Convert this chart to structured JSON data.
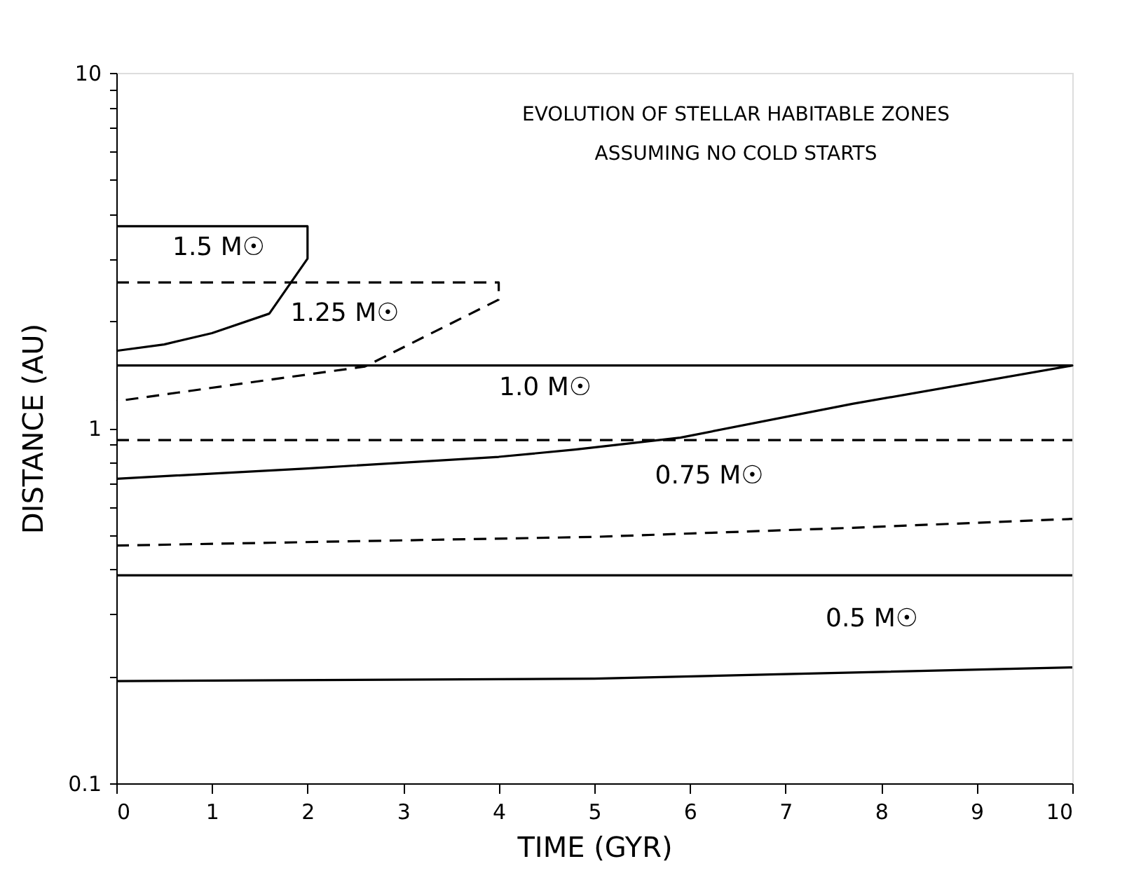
{
  "chart_data": {
    "type": "line",
    "title": "EVOLUTION OF STELLAR HABITABLE ZONES",
    "subtitle": "ASSUMING NO COLD STARTS",
    "xlabel": "TIME (GYR)",
    "ylabel": "DISTANCE (AU)",
    "log": "y",
    "grid": false,
    "marker": "none",
    "xlim": [
      0,
      10
    ],
    "xticks": [
      0,
      1,
      2,
      3,
      4,
      5,
      6,
      7,
      8,
      9,
      10
    ],
    "ylim": [
      0.1,
      10
    ],
    "yticks": [
      0.1,
      {
        "value": 0.2,
        "label": null
      },
      {
        "value": 0.3,
        "label": null
      },
      {
        "value": 0.4,
        "label": null
      },
      {
        "value": 0.5,
        "label": null
      },
      {
        "value": 0.6,
        "label": null
      },
      {
        "value": 0.7,
        "label": null
      },
      {
        "value": 0.8,
        "label": null
      },
      {
        "value": 0.9,
        "label": null
      },
      1,
      {
        "value": 2,
        "label": null
      },
      {
        "value": 3,
        "label": null
      },
      {
        "value": 4,
        "label": null
      },
      {
        "value": 5,
        "label": null
      },
      {
        "value": 6,
        "label": null
      },
      {
        "value": 7,
        "label": null
      },
      {
        "value": 8,
        "label": null
      },
      {
        "value": 9,
        "label": null
      },
      10
    ],
    "series": [
      {
        "color": "#000000",
        "line_style": "solid",
        "x": [
          0,
          2,
          2,
          1.6,
          1.0,
          0.5,
          0
        ],
        "values": [
          3.7,
          3.7,
          3.0,
          2.1,
          1.85,
          1.72,
          1.65
        ]
      },
      {
        "color": "#000000",
        "line_style": "dashed",
        "x": [
          0,
          4,
          4,
          2.6,
          1.1,
          0
        ],
        "values": [
          2.57,
          2.57,
          2.3,
          1.49,
          1.31,
          1.19
        ]
      },
      {
        "color": "#000000",
        "line_style": "solid",
        "x": [
          0,
          10,
          10,
          7.7,
          5.9,
          4.8,
          4,
          2,
          0
        ],
        "values": [
          1.5,
          1.5,
          1.5,
          1.17,
          0.94,
          0.87,
          0.83,
          0.77,
          0.72
        ]
      },
      {
        "color": "#000000",
        "line_style": "dashed",
        "x": [
          0,
          10,
          null,
          0,
          5,
          7.7,
          10
        ],
        "values": [
          0.925,
          0.925,
          null,
          0.467,
          0.494,
          0.524,
          0.555
        ]
      },
      {
        "color": "#000000",
        "line_style": "solid",
        "x": [
          0,
          10,
          null,
          0,
          5,
          7,
          10
        ],
        "values": [
          0.385,
          0.385,
          null,
          0.194,
          0.197,
          0.203,
          0.212
        ]
      }
    ],
    "annotations": [
      "1.5 M☉",
      "1.25 M☉",
      "1.0 M☉",
      "0.75 M☉",
      "0.5 M☉"
    ]
  }
}
